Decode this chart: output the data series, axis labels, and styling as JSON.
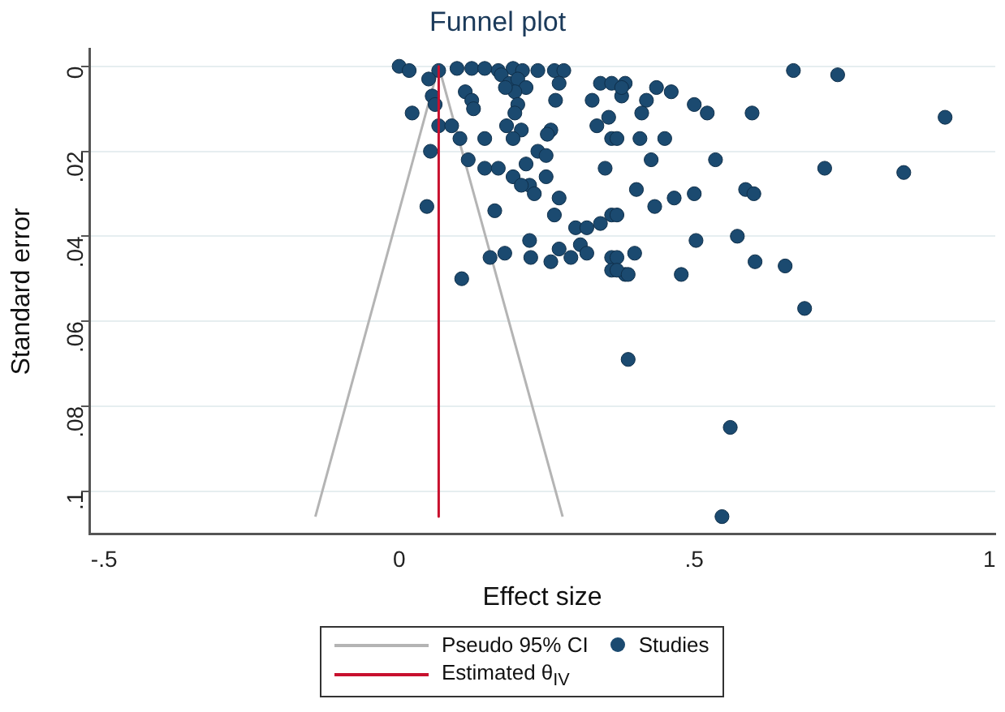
{
  "chart_data": {
    "type": "scatter",
    "title": "Funnel plot",
    "xlabel": "Effect size",
    "ylabel": "Standard error",
    "xlim": [
      -0.525,
      1.01
    ],
    "ylim": [
      0.11,
      -0.004
    ],
    "xticks": [
      {
        "value": -0.5,
        "label": "-.5"
      },
      0,
      {
        "value": 0.5,
        "label": ".5"
      },
      1
    ],
    "yticks": [
      0,
      {
        "value": 0.02,
        "label": ".02"
      },
      {
        "value": 0.04,
        "label": ".04"
      },
      {
        "value": 0.06,
        "label": ".06"
      },
      {
        "value": 0.08,
        "label": ".08"
      },
      {
        "value": 0.1,
        "label": ".1"
      }
    ],
    "grid": "y",
    "legend": "bottom",
    "series": [
      {
        "name": "Pseudo 95% CI",
        "type": "line",
        "color": "#b4b4b4",
        "marker": "none",
        "line_style": "solid",
        "x": [
          -0.142,
          0.067,
          0.277
        ],
        "values": [
          0.106,
          0,
          0.106
        ]
      },
      {
        "name": "Studies",
        "color": "#1b4a70",
        "marker": "circle",
        "x": [
          0,
          0.017,
          0.067,
          0.098,
          0.123,
          0.145,
          0.168,
          0.193,
          0.209,
          0.235,
          0.263,
          0.279,
          0.173,
          0.187,
          0.201,
          0.215,
          0.196,
          0.18,
          0.05,
          0.056,
          0.061,
          0.112,
          0.123,
          0.126,
          0.022,
          0.271,
          0.265,
          0.327,
          0.341,
          0.36,
          0.383,
          0.377,
          0.355,
          0.335,
          0.36,
          0.201,
          0.196,
          0.182,
          0.207,
          0.193,
          0.257,
          0.251,
          0.067,
          0.089,
          0.103,
          0.145,
          0.053,
          0.117,
          0.145,
          0.168,
          0.193,
          0.215,
          0.235,
          0.249,
          0.249,
          0.221,
          0.207,
          0.229,
          0.271,
          0.349,
          0.047,
          0.162,
          0.263,
          0.299,
          0.318,
          0.341,
          0.36,
          0.221,
          0.223,
          0.179,
          0.154,
          0.257,
          0.271,
          0.291,
          0.307,
          0.318,
          0.36,
          0.36,
          0.383,
          0.106,
          0.668,
          0.743,
          0.377,
          0.436,
          0.461,
          0.419,
          0.5,
          0.522,
          0.411,
          0.598,
          0.925,
          0.408,
          0.45,
          0.369,
          0.427,
          0.536,
          0.721,
          0.855,
          0.402,
          0.466,
          0.5,
          0.433,
          0.587,
          0.601,
          0.369,
          0.503,
          0.573,
          0.399,
          0.369,
          0.369,
          0.388,
          0.478,
          0.603,
          0.654,
          0.687,
          0.388,
          0.561,
          0.547
        ],
        "values": [
          0,
          0.001,
          0.001,
          0.0005,
          0.0005,
          0.0005,
          0.001,
          0.0005,
          0.001,
          0.001,
          0.001,
          0.001,
          0.002,
          0.004,
          0.003,
          0.005,
          0.006,
          0.005,
          0.003,
          0.007,
          0.009,
          0.006,
          0.008,
          0.01,
          0.011,
          0.004,
          0.008,
          0.008,
          0.004,
          0.004,
          0.004,
          0.007,
          0.012,
          0.014,
          0.017,
          0.009,
          0.011,
          0.014,
          0.015,
          0.017,
          0.015,
          0.016,
          0.014,
          0.014,
          0.017,
          0.017,
          0.02,
          0.022,
          0.024,
          0.024,
          0.026,
          0.023,
          0.02,
          0.021,
          0.026,
          0.028,
          0.028,
          0.03,
          0.031,
          0.024,
          0.033,
          0.034,
          0.035,
          0.038,
          0.038,
          0.037,
          0.035,
          0.041,
          0.045,
          0.044,
          0.045,
          0.046,
          0.043,
          0.045,
          0.042,
          0.044,
          0.045,
          0.048,
          0.049,
          0.05,
          0.001,
          0.002,
          0.005,
          0.005,
          0.006,
          0.008,
          0.009,
          0.011,
          0.011,
          0.011,
          0.012,
          0.017,
          0.017,
          0.017,
          0.022,
          0.022,
          0.024,
          0.025,
          0.029,
          0.031,
          0.03,
          0.033,
          0.029,
          0.03,
          0.035,
          0.041,
          0.04,
          0.044,
          0.045,
          0.048,
          0.049,
          0.049,
          0.046,
          0.047,
          0.057,
          0.069,
          0.085,
          0.106
        ]
      },
      {
        "name": "Estimated θ$_{IV}$",
        "type": "line",
        "color": "#c8102e",
        "marker": "none",
        "line_style": "solid",
        "x": [
          0.067,
          0.067
        ],
        "values": [
          0,
          0.106
        ]
      }
    ]
  }
}
